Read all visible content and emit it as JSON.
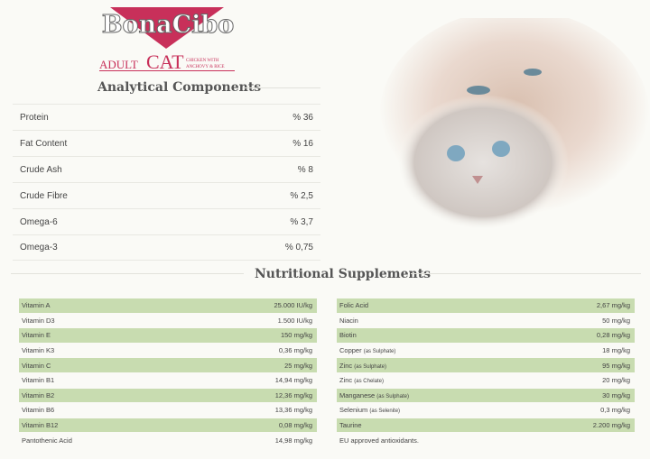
{
  "brand": {
    "logo_text": "BonaCibo",
    "product_line": "ADULT",
    "product": "CAT",
    "variant_line1": "CHICKEN WITH",
    "variant_line2": "ANCHOVY & RICE",
    "accent": "#c8305a"
  },
  "analytical": {
    "title": "Analytical Components",
    "rows": [
      {
        "label": "Protein",
        "value": "% 36"
      },
      {
        "label": "Fat Content",
        "value": "% 16"
      },
      {
        "label": "Crude Ash",
        "value": "% 8"
      },
      {
        "label": "Crude Fibre",
        "value": "% 2,5"
      },
      {
        "label": "Omega-6",
        "value": "% 3,7"
      },
      {
        "label": "Omega-3",
        "value": "% 0,75"
      }
    ]
  },
  "supplements": {
    "title": "Nutritional Supplements",
    "row_color": "#c8dcb0",
    "left": [
      {
        "label": "Vitamin A",
        "note": "",
        "value": "25.000 IU/kg"
      },
      {
        "label": "Vitamin D3",
        "note": "",
        "value": "1.500 IU/kg"
      },
      {
        "label": "Vitamin E",
        "note": "",
        "value": "150 mg/kg"
      },
      {
        "label": "Vitamin K3",
        "note": "",
        "value": "0,36 mg/kg"
      },
      {
        "label": "Vitamin C",
        "note": "",
        "value": "25 mg/kg"
      },
      {
        "label": "Vitamin B1",
        "note": "",
        "value": "14,94 mg/kg"
      },
      {
        "label": "Vitamin B2",
        "note": "",
        "value": "12,36 mg/kg"
      },
      {
        "label": "Vitamin B6",
        "note": "",
        "value": "13,36 mg/kg"
      },
      {
        "label": "Vitamin B12",
        "note": "",
        "value": "0,08 mg/kg"
      },
      {
        "label": "Pantothenic Acid",
        "note": "",
        "value": "14,98 mg/kg"
      }
    ],
    "right": [
      {
        "label": "Folic Acid",
        "note": "",
        "value": "2,67 mg/kg"
      },
      {
        "label": "Niacin",
        "note": "",
        "value": "50 mg/kg"
      },
      {
        "label": "Biotin",
        "note": "",
        "value": "0,28 mg/kg"
      },
      {
        "label": "Copper",
        "note": "(as Sulphate)",
        "value": "18 mg/kg"
      },
      {
        "label": "Zinc",
        "note": "(as Sulphate)",
        "value": "95 mg/kg"
      },
      {
        "label": "Zinc",
        "note": "(as Chelate)",
        "value": "20 mg/kg"
      },
      {
        "label": "Manganese",
        "note": "(as Sulphate)",
        "value": "30 mg/kg"
      },
      {
        "label": "Selenium",
        "note": "(as Selenite)",
        "value": "0,3 mg/kg"
      },
      {
        "label": "Taurine",
        "note": "",
        "value": "2.200 mg/kg"
      },
      {
        "label": "EU approved antioxidants.",
        "note": "",
        "value": ""
      }
    ]
  }
}
